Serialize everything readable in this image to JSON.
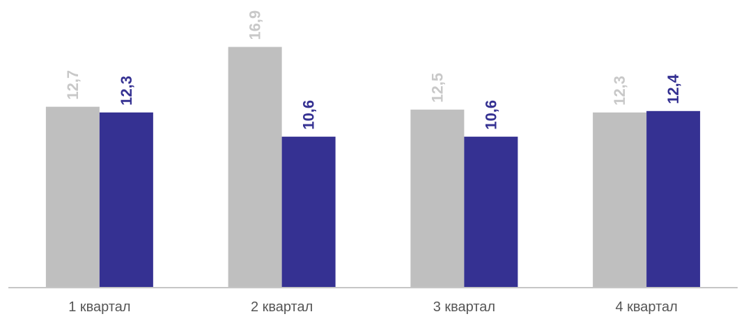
{
  "chart_data": {
    "type": "bar",
    "categories": [
      "1 квартал",
      "2 квартал",
      "3 квартал",
      "4 квартал"
    ],
    "series": [
      {
        "values": [
          12.7,
          16.9,
          12.5,
          12.3
        ],
        "value_labels": [
          "12,7",
          "16,9",
          "12,5",
          "12,3"
        ],
        "color": "#bfbfbf",
        "label_color": "#c8c8c8"
      },
      {
        "values": [
          12.3,
          10.6,
          10.6,
          12.4
        ],
        "value_labels": [
          "12,3",
          "10,6",
          "10,6",
          "12,4"
        ],
        "color": "#353192",
        "label_color": "#353192"
      }
    ],
    "ylim": [
      0,
      20
    ],
    "grid": false,
    "legend": "none",
    "value_label_orientation": "vertical"
  }
}
